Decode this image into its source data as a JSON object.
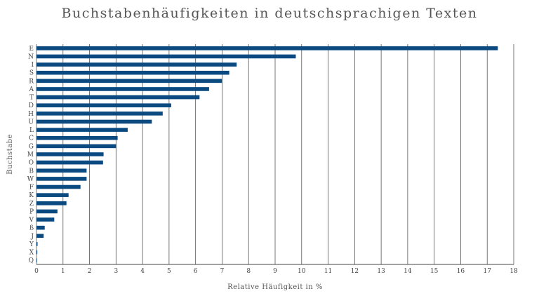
{
  "chart_data": {
    "type": "bar",
    "orientation": "horizontal",
    "title": "Buchstabenhäufigkeiten in deutschsprachigen Texten",
    "xlabel": "Relative Häufigkeit in %",
    "ylabel": "Buchstabe",
    "xlim": [
      0,
      18
    ],
    "x_ticks": [
      0,
      1,
      2,
      3,
      4,
      5,
      6,
      7,
      8,
      9,
      10,
      11,
      12,
      13,
      14,
      15,
      16,
      17,
      18
    ],
    "grid": "vertical",
    "bar_color": "#0b4a80",
    "categories": [
      "E",
      "N",
      "I",
      "S",
      "R",
      "A",
      "T",
      "D",
      "H",
      "U",
      "L",
      "C",
      "G",
      "M",
      "O",
      "B",
      "W",
      "F",
      "K",
      "Z",
      "P",
      "V",
      "ß",
      "J",
      "Y",
      "X",
      "Q"
    ],
    "values": [
      17.4,
      9.78,
      7.55,
      7.27,
      7.0,
      6.51,
      6.15,
      5.08,
      4.76,
      4.35,
      3.44,
      3.06,
      3.01,
      2.53,
      2.51,
      1.89,
      1.89,
      1.66,
      1.21,
      1.13,
      0.79,
      0.67,
      0.31,
      0.27,
      0.04,
      0.03,
      0.02
    ]
  }
}
